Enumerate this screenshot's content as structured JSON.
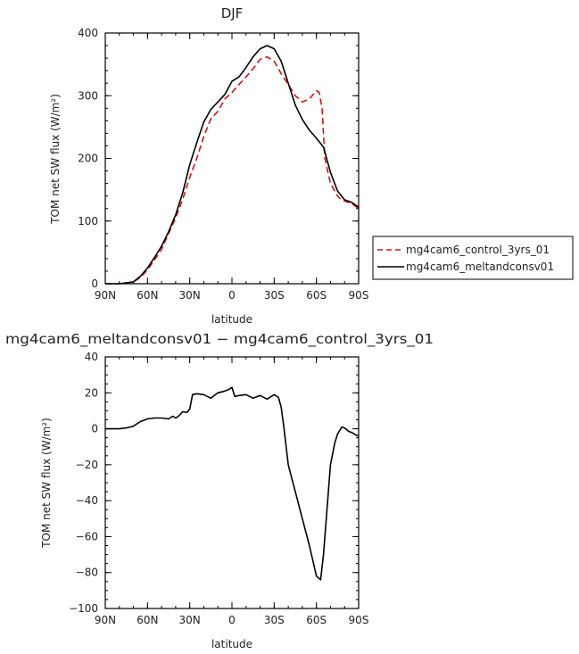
{
  "chart_data": [
    {
      "type": "line",
      "title": "DJF",
      "xlabel": "latitude",
      "ylabel": "TOM net SW flux (W/m²)",
      "xlim": [
        90,
        -90
      ],
      "ylim": [
        0,
        400
      ],
      "xticks": [
        90,
        60,
        30,
        0,
        -30,
        -60,
        -90
      ],
      "xtick_labels": [
        "90N",
        "60N",
        "30N",
        "0",
        "30S",
        "60S",
        "90S"
      ],
      "yticks": [
        0,
        100,
        200,
        300,
        400
      ],
      "ytick_labels": [
        "0",
        "100",
        "200",
        "300",
        "400"
      ],
      "legend": "right",
      "series": [
        {
          "name": "mg4cam6_control_3yrs_01",
          "color": "#dd1111",
          "dash": "dashed",
          "x": [
            90,
            80,
            70,
            65,
            60,
            55,
            50,
            45,
            40,
            35,
            30,
            25,
            20,
            15,
            10,
            5,
            0,
            -5,
            -10,
            -15,
            -20,
            -25,
            -30,
            -35,
            -40,
            -45,
            -50,
            -55,
            -60,
            -62,
            -64,
            -66,
            -70,
            -75,
            -78,
            -80,
            -85,
            -90
          ],
          "y": [
            0,
            0,
            3,
            10,
            22,
            38,
            55,
            80,
            105,
            135,
            170,
            200,
            235,
            263,
            275,
            295,
            305,
            318,
            330,
            343,
            358,
            362,
            355,
            335,
            318,
            300,
            290,
            295,
            308,
            305,
            280,
            200,
            160,
            140,
            133,
            132,
            128,
            120
          ]
        },
        {
          "name": "mg4cam6_meltandconsv01",
          "color": "#000000",
          "dash": "solid",
          "x": [
            90,
            80,
            70,
            65,
            60,
            55,
            50,
            45,
            40,
            35,
            30,
            25,
            20,
            15,
            10,
            5,
            0,
            -5,
            -10,
            -15,
            -20,
            -25,
            -30,
            -35,
            -40,
            -45,
            -50,
            -55,
            -60,
            -65,
            -70,
            -75,
            -80,
            -85,
            -90
          ],
          "y": [
            0,
            0,
            3,
            12,
            25,
            42,
            60,
            83,
            110,
            145,
            190,
            225,
            258,
            278,
            290,
            302,
            323,
            330,
            345,
            362,
            375,
            380,
            375,
            355,
            320,
            285,
            262,
            245,
            232,
            218,
            178,
            148,
            134,
            130,
            122
          ]
        }
      ]
    },
    {
      "type": "line",
      "title": "mg4cam6_meltandconsv01 − mg4cam6_control_3yrs_01",
      "xlabel": "latitude",
      "ylabel": "TOM net SW flux (W/m²)",
      "xlim": [
        90,
        -90
      ],
      "ylim": [
        -100,
        40
      ],
      "xticks": [
        90,
        60,
        30,
        0,
        -30,
        -60,
        -90
      ],
      "xtick_labels": [
        "90N",
        "60N",
        "30N",
        "0",
        "30S",
        "60S",
        "90S"
      ],
      "yticks": [
        -100,
        -80,
        -60,
        -40,
        -20,
        0,
        20,
        40
      ],
      "ytick_labels": [
        "−100",
        "−80",
        "−60",
        "−40",
        "−20",
        "0",
        "20",
        "40"
      ],
      "series": [
        {
          "color": "#000000",
          "dash": "solid",
          "x": [
            90,
            80,
            75,
            70,
            65,
            60,
            55,
            50,
            45,
            42,
            40,
            38,
            35,
            32,
            30,
            28,
            25,
            20,
            15,
            10,
            5,
            2,
            0,
            -2,
            -5,
            -10,
            -15,
            -20,
            -25,
            -30,
            -33,
            -35,
            -37,
            -40,
            -45,
            -50,
            -55,
            -60,
            -63,
            -65,
            -68,
            -70,
            -73,
            -75,
            -78,
            -80,
            -83,
            -85,
            -88,
            -90
          ],
          "y": [
            0,
            0,
            0.5,
            1.5,
            4,
            5.5,
            6,
            6,
            5.5,
            7,
            6,
            7,
            9.5,
            9,
            11,
            19,
            19.5,
            19,
            17,
            20,
            21,
            22,
            23,
            18,
            18.5,
            19,
            17,
            18.5,
            16.5,
            19,
            17.5,
            12,
            0,
            -20,
            -35,
            -50,
            -65,
            -82,
            -84,
            -70,
            -40,
            -20,
            -8,
            -3,
            1,
            0.5,
            -1.5,
            -2,
            -3.5,
            -4
          ]
        }
      ]
    }
  ]
}
